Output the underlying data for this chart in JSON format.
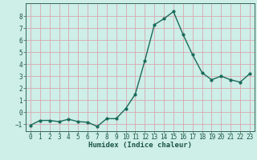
{
  "x": [
    0,
    1,
    2,
    3,
    4,
    5,
    6,
    7,
    8,
    9,
    10,
    11,
    12,
    13,
    14,
    15,
    16,
    17,
    18,
    19,
    20,
    21,
    22,
    23
  ],
  "y": [
    -1.1,
    -0.7,
    -0.7,
    -0.8,
    -0.6,
    -0.8,
    -0.85,
    -1.2,
    -0.55,
    -0.55,
    0.3,
    1.5,
    4.3,
    7.3,
    7.8,
    8.4,
    6.5,
    4.8,
    3.3,
    2.7,
    3.0,
    2.7,
    2.5,
    3.2
  ],
  "line_color": "#1a6b5a",
  "marker": "o",
  "marker_size": 2,
  "bg_color": "#ceeee8",
  "grid_color": "#d8a8b0",
  "xlabel": "Humidex (Indice chaleur)",
  "xlim": [
    -0.5,
    23.5
  ],
  "ylim": [
    -1.6,
    9.1
  ],
  "yticks": [
    -1,
    0,
    1,
    2,
    3,
    4,
    5,
    6,
    7,
    8
  ],
  "xticks": [
    0,
    1,
    2,
    3,
    4,
    5,
    6,
    7,
    8,
    9,
    10,
    11,
    12,
    13,
    14,
    15,
    16,
    17,
    18,
    19,
    20,
    21,
    22,
    23
  ],
  "tick_label_size": 5.5,
  "xlabel_size": 6.5,
  "line_width": 1.0
}
